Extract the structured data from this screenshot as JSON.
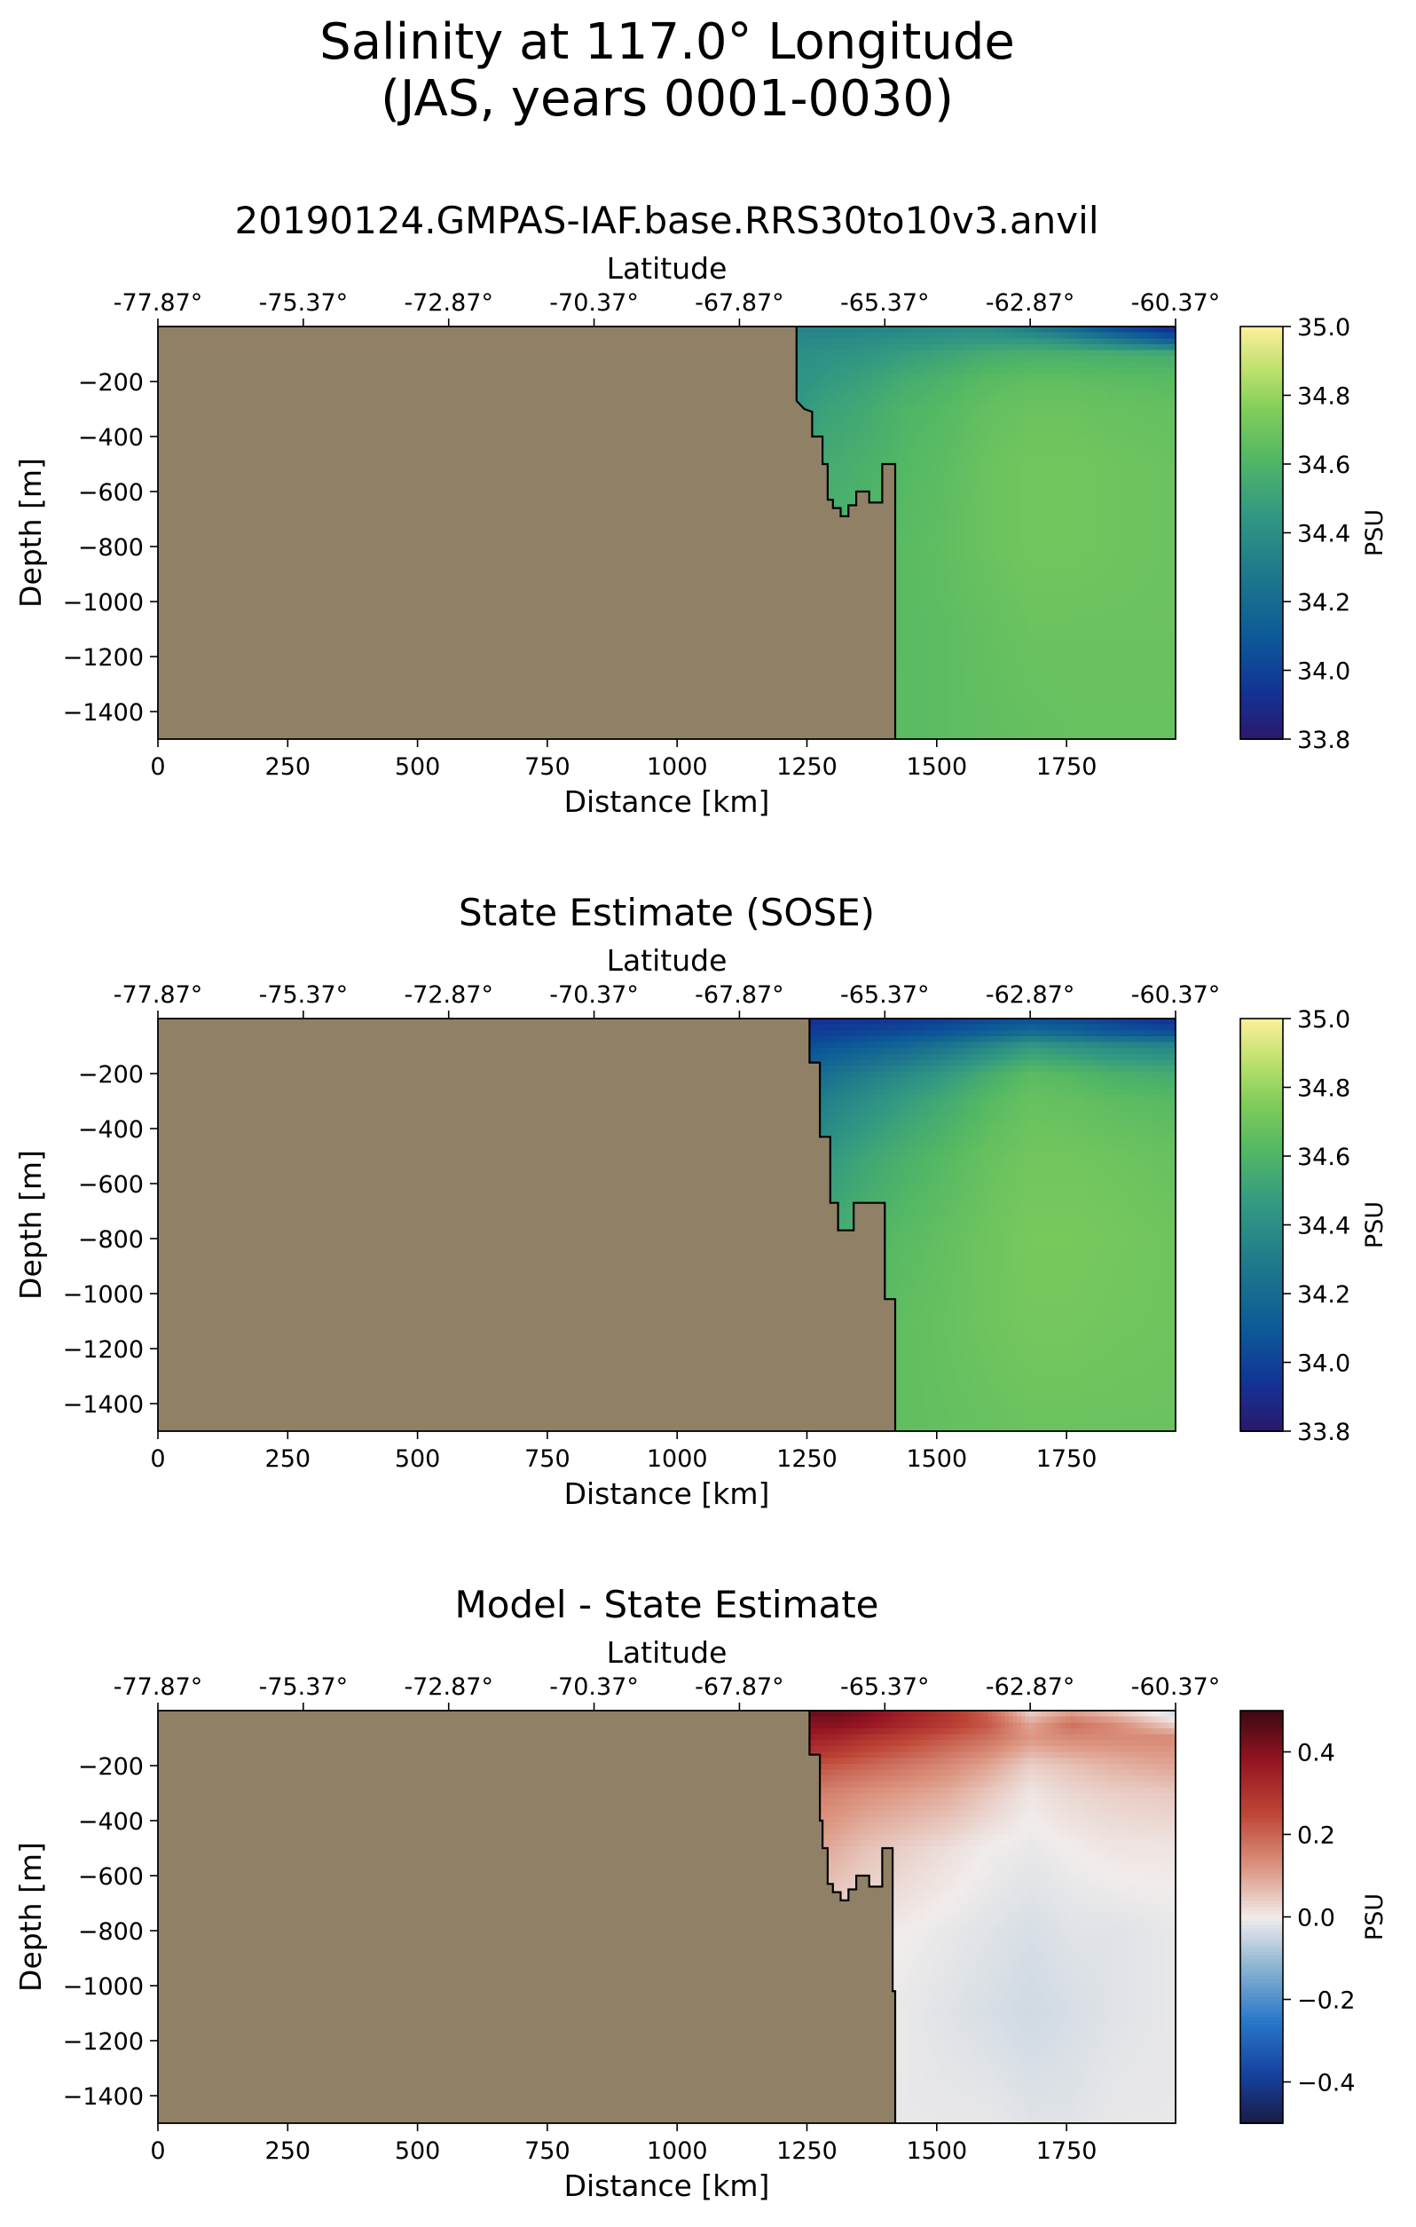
{
  "figure": {
    "title_line1": "Salinity at 117.0° Longitude",
    "title_line2": "(JAS, years 0001-0030)"
  },
  "chart_data": [
    {
      "type": "heatmap",
      "title": "20190124.GMPAS-IAF.base.RRS30to10v3.anvil",
      "xlabel": "Distance [km]",
      "ylabel": "Depth [m]",
      "top_xlabel": "Latitude",
      "xlim": [
        0,
        1960
      ],
      "ylim": [
        -1500,
        0
      ],
      "x_ticks": [
        0,
        250,
        500,
        750,
        1000,
        1250,
        1500,
        1750
      ],
      "x_tick_labels": [
        "0",
        "250",
        "500",
        "750",
        "1000",
        "1250",
        "1500",
        "1750"
      ],
      "y_ticks": [
        -200,
        -400,
        -600,
        -800,
        -1000,
        -1200,
        -1400
      ],
      "y_tick_labels": [
        "−200",
        "−400",
        "−600",
        "−800",
        "−1000",
        "−1200",
        "−1400"
      ],
      "top_ticks": [
        0,
        280,
        560,
        840,
        1120,
        1400,
        1680,
        1960
      ],
      "top_tick_labels": [
        "-77.87°",
        "-75.37°",
        "-72.87°",
        "-70.37°",
        "-67.87°",
        "-65.37°",
        "-62.87°",
        "-60.37°"
      ],
      "colorbar": {
        "label": "PSU",
        "colormap": "haline",
        "range": [
          33.8,
          35.0
        ],
        "ticks": [
          33.8,
          34.0,
          34.2,
          34.4,
          34.6,
          34.8,
          35.0
        ],
        "tick_labels": [
          "33.8",
          "34.0",
          "34.2",
          "34.4",
          "34.6",
          "34.8",
          "35.0"
        ]
      },
      "land_color": "#908166",
      "land_boundary": [
        [
          1230,
          0
        ],
        [
          1230,
          -270
        ],
        [
          1245,
          -300
        ],
        [
          1260,
          -310
        ],
        [
          1260,
          -400
        ],
        [
          1280,
          -400
        ],
        [
          1280,
          -500
        ],
        [
          1290,
          -500
        ],
        [
          1290,
          -630
        ],
        [
          1300,
          -630
        ],
        [
          1300,
          -660
        ],
        [
          1315,
          -660
        ],
        [
          1315,
          -690
        ],
        [
          1330,
          -690
        ],
        [
          1330,
          -650
        ],
        [
          1345,
          -650
        ],
        [
          1345,
          -600
        ],
        [
          1370,
          -600
        ],
        [
          1370,
          -640
        ],
        [
          1395,
          -640
        ],
        [
          1395,
          -500
        ],
        [
          1420,
          -500
        ],
        [
          1420,
          -1500
        ]
      ],
      "field": {
        "x_nodes": [
          1230,
          1280,
          1360,
          1440,
          1520,
          1600,
          1680,
          1760,
          1840,
          1960
        ],
        "depth_nodes": [
          0,
          -50,
          -100,
          -200,
          -300,
          -500,
          -800,
          -1100,
          -1500
        ],
        "values": [
          [
            34.33,
            34.33,
            34.34,
            34.35,
            34.37,
            34.38,
            34.28,
            34.15,
            34.0,
            33.85
          ],
          [
            34.37,
            34.38,
            34.39,
            34.42,
            34.44,
            34.46,
            34.45,
            34.4,
            34.3,
            34.12
          ],
          [
            34.4,
            34.42,
            34.44,
            34.48,
            34.52,
            34.56,
            34.58,
            34.58,
            34.57,
            34.56
          ],
          [
            34.42,
            34.46,
            34.5,
            34.56,
            34.6,
            34.64,
            34.66,
            34.66,
            34.65,
            34.64
          ],
          [
            34.45,
            34.5,
            34.54,
            34.6,
            34.63,
            34.67,
            34.69,
            34.69,
            34.68,
            34.67
          ],
          [
            34.5,
            34.55,
            34.58,
            34.62,
            34.65,
            34.69,
            34.71,
            34.71,
            34.7,
            34.69
          ],
          [
            34.55,
            34.58,
            34.61,
            34.64,
            34.66,
            34.69,
            34.71,
            34.71,
            34.7,
            34.69
          ],
          [
            34.6,
            34.62,
            34.63,
            34.64,
            34.65,
            34.67,
            34.69,
            34.69,
            34.69,
            34.69
          ],
          [
            34.62,
            34.63,
            34.64,
            34.64,
            34.65,
            34.66,
            34.67,
            34.68,
            34.68,
            34.68
          ]
        ]
      }
    },
    {
      "type": "heatmap",
      "title": "State Estimate (SOSE)",
      "xlabel": "Distance [km]",
      "ylabel": "Depth [m]",
      "top_xlabel": "Latitude",
      "xlim": [
        0,
        1960
      ],
      "ylim": [
        -1500,
        0
      ],
      "x_ticks": [
        0,
        250,
        500,
        750,
        1000,
        1250,
        1500,
        1750
      ],
      "x_tick_labels": [
        "0",
        "250",
        "500",
        "750",
        "1000",
        "1250",
        "1500",
        "1750"
      ],
      "y_ticks": [
        -200,
        -400,
        -600,
        -800,
        -1000,
        -1200,
        -1400
      ],
      "y_tick_labels": [
        "−200",
        "−400",
        "−600",
        "−800",
        "−1000",
        "−1200",
        "−1400"
      ],
      "top_ticks": [
        0,
        280,
        560,
        840,
        1120,
        1400,
        1680,
        1960
      ],
      "top_tick_labels": [
        "-77.87°",
        "-75.37°",
        "-72.87°",
        "-70.37°",
        "-67.87°",
        "-65.37°",
        "-62.87°",
        "-60.37°"
      ],
      "colorbar": {
        "label": "PSU",
        "colormap": "haline",
        "range": [
          33.8,
          35.0
        ],
        "ticks": [
          33.8,
          34.0,
          34.2,
          34.4,
          34.6,
          34.8,
          35.0
        ],
        "tick_labels": [
          "33.8",
          "34.0",
          "34.2",
          "34.4",
          "34.6",
          "34.8",
          "35.0"
        ]
      },
      "land_color": "#908166",
      "land_boundary": [
        [
          1255,
          0
        ],
        [
          1255,
          -160
        ],
        [
          1275,
          -160
        ],
        [
          1275,
          -430
        ],
        [
          1295,
          -430
        ],
        [
          1295,
          -670
        ],
        [
          1310,
          -670
        ],
        [
          1310,
          -770
        ],
        [
          1340,
          -770
        ],
        [
          1340,
          -670
        ],
        [
          1400,
          -670
        ],
        [
          1400,
          -1020
        ],
        [
          1420,
          -1020
        ],
        [
          1420,
          -1500
        ]
      ],
      "field": {
        "x_nodes": [
          1255,
          1300,
          1360,
          1440,
          1520,
          1600,
          1680,
          1760,
          1840,
          1960
        ],
        "depth_nodes": [
          0,
          -50,
          -100,
          -200,
          -300,
          -500,
          -800,
          -1100,
          -1500
        ],
        "values": [
          [
            33.93,
            33.93,
            33.94,
            33.96,
            33.98,
            34.02,
            34.05,
            34.02,
            33.98,
            33.92
          ],
          [
            33.98,
            33.99,
            34.01,
            34.04,
            34.08,
            34.14,
            34.2,
            34.16,
            34.1,
            34.05
          ],
          [
            34.05,
            34.08,
            34.12,
            34.18,
            34.26,
            34.36,
            34.46,
            34.42,
            34.38,
            34.35
          ],
          [
            34.18,
            34.24,
            34.3,
            34.38,
            34.46,
            34.56,
            34.64,
            34.62,
            34.58,
            34.55
          ],
          [
            34.28,
            34.34,
            34.4,
            34.48,
            34.55,
            34.63,
            34.68,
            34.67,
            34.65,
            34.63
          ],
          [
            34.4,
            34.46,
            34.52,
            34.58,
            34.63,
            34.68,
            34.71,
            34.71,
            34.7,
            34.68
          ],
          [
            34.52,
            34.56,
            34.6,
            34.64,
            34.67,
            34.7,
            34.73,
            34.73,
            34.72,
            34.7
          ],
          [
            34.58,
            34.61,
            34.63,
            34.66,
            34.68,
            34.7,
            34.72,
            34.72,
            34.71,
            34.7
          ],
          [
            34.62,
            34.64,
            34.65,
            34.66,
            34.67,
            34.68,
            34.69,
            34.69,
            34.69,
            34.69
          ]
        ]
      }
    },
    {
      "type": "heatmap",
      "title": "Model - State Estimate",
      "xlabel": "Distance [km]",
      "ylabel": "Depth [m]",
      "top_xlabel": "Latitude",
      "xlim": [
        0,
        1960
      ],
      "ylim": [
        -1500,
        0
      ],
      "x_ticks": [
        0,
        250,
        500,
        750,
        1000,
        1250,
        1500,
        1750
      ],
      "x_tick_labels": [
        "0",
        "250",
        "500",
        "750",
        "1000",
        "1250",
        "1500",
        "1750"
      ],
      "y_ticks": [
        -200,
        -400,
        -600,
        -800,
        -1000,
        -1200,
        -1400
      ],
      "y_tick_labels": [
        "−200",
        "−400",
        "−600",
        "−800",
        "−1000",
        "−1200",
        "−1400"
      ],
      "top_ticks": [
        0,
        280,
        560,
        840,
        1120,
        1400,
        1680,
        1960
      ],
      "top_tick_labels": [
        "-77.87°",
        "-75.37°",
        "-72.87°",
        "-70.37°",
        "-67.87°",
        "-65.37°",
        "-62.87°",
        "-60.37°"
      ],
      "colorbar": {
        "label": "PSU",
        "colormap": "balance",
        "range": [
          -0.5,
          0.5
        ],
        "ticks": [
          -0.4,
          -0.2,
          0.0,
          0.2,
          0.4
        ],
        "tick_labels": [
          "−0.4",
          "−0.2",
          "0.0",
          "0.2",
          "0.4"
        ]
      },
      "land_color": "#908166",
      "land_boundary": [
        [
          1255,
          0
        ],
        [
          1255,
          -160
        ],
        [
          1275,
          -160
        ],
        [
          1275,
          -400
        ],
        [
          1280,
          -400
        ],
        [
          1280,
          -500
        ],
        [
          1290,
          -500
        ],
        [
          1290,
          -630
        ],
        [
          1300,
          -630
        ],
        [
          1300,
          -660
        ],
        [
          1315,
          -660
        ],
        [
          1315,
          -690
        ],
        [
          1330,
          -690
        ],
        [
          1330,
          -650
        ],
        [
          1345,
          -650
        ],
        [
          1345,
          -600
        ],
        [
          1370,
          -600
        ],
        [
          1370,
          -640
        ],
        [
          1395,
          -640
        ],
        [
          1395,
          -500
        ],
        [
          1415,
          -500
        ],
        [
          1415,
          -1020
        ],
        [
          1420,
          -1020
        ],
        [
          1420,
          -1500
        ]
      ],
      "field": {
        "x_nodes": [
          1255,
          1300,
          1360,
          1440,
          1520,
          1600,
          1680,
          1760,
          1840,
          1960
        ],
        "depth_nodes": [
          0,
          -50,
          -100,
          -200,
          -300,
          -500,
          -800,
          -1100,
          -1500
        ],
        "values": [
          [
            0.45,
            0.45,
            0.42,
            0.35,
            0.3,
            0.2,
            0.03,
            0.1,
            0.05,
            -0.05
          ],
          [
            0.4,
            0.4,
            0.38,
            0.33,
            0.28,
            0.22,
            0.1,
            0.18,
            0.14,
            0.04
          ],
          [
            0.35,
            0.34,
            0.3,
            0.26,
            0.22,
            0.18,
            0.12,
            0.14,
            0.14,
            0.14
          ],
          [
            0.24,
            0.22,
            0.2,
            0.17,
            0.14,
            0.1,
            0.04,
            0.06,
            0.08,
            0.1
          ],
          [
            0.16,
            0.15,
            0.13,
            0.11,
            0.09,
            0.05,
            0.01,
            0.03,
            0.04,
            0.05
          ],
          [
            0.1,
            0.09,
            0.06,
            0.04,
            0.02,
            0.0,
            -0.01,
            0.0,
            0.01,
            0.01
          ],
          [
            0.03,
            0.02,
            0.01,
            0.0,
            -0.01,
            -0.02,
            -0.03,
            -0.02,
            -0.02,
            -0.01
          ],
          [
            0.02,
            0.01,
            0.0,
            -0.01,
            -0.02,
            -0.03,
            -0.04,
            -0.03,
            -0.02,
            -0.01
          ],
          [
            0.0,
            0.0,
            -0.01,
            -0.01,
            -0.01,
            -0.01,
            -0.02,
            -0.02,
            -0.01,
            -0.01
          ]
        ]
      }
    }
  ]
}
